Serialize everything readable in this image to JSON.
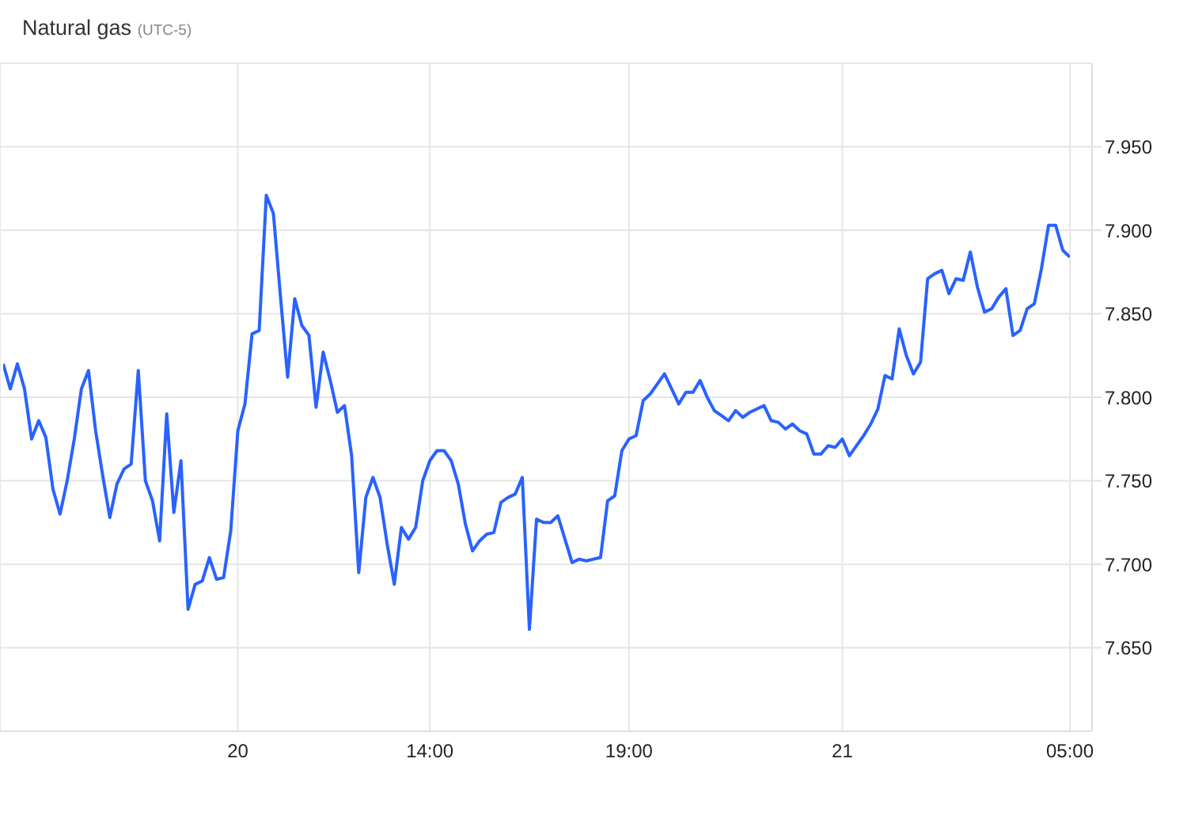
{
  "chart_data": {
    "type": "line",
    "title": "Natural gas",
    "subtitle": "(UTC-5)",
    "categories": [
      null,
      null,
      null,
      null,
      null,
      null,
      null,
      null,
      null,
      null,
      null,
      null,
      null,
      null,
      null,
      null,
      null,
      null,
      null,
      null,
      null,
      null,
      null,
      null,
      null,
      null,
      null,
      null,
      null,
      null,
      null,
      null,
      null,
      "20",
      null,
      null,
      null,
      null,
      null,
      null,
      null,
      null,
      null,
      null,
      null,
      null,
      null,
      null,
      null,
      null,
      null,
      null,
      null,
      null,
      null,
      null,
      null,
      null,
      null,
      null,
      "14:00",
      null,
      null,
      null,
      null,
      null,
      null,
      null,
      null,
      null,
      null,
      null,
      null,
      null,
      null,
      null,
      null,
      null,
      null,
      null,
      null,
      null,
      null,
      null,
      null,
      null,
      null,
      null,
      "19:00",
      null,
      null,
      null,
      null,
      null,
      null,
      null,
      null,
      null,
      null,
      null,
      null,
      null,
      null,
      null,
      null,
      null,
      null,
      null,
      null,
      null,
      null,
      null,
      null,
      null,
      null,
      null,
      null,
      null,
      "21",
      null,
      null,
      null,
      null,
      null,
      null,
      null,
      null,
      null,
      null,
      null,
      null,
      null,
      null,
      null,
      null,
      null,
      null,
      null,
      null,
      null,
      null,
      null,
      null,
      null,
      null,
      null,
      null,
      null,
      null,
      null,
      "05:00"
    ],
    "values": [
      7.82,
      7.805,
      7.82,
      7.805,
      7.775,
      7.786,
      7.776,
      7.745,
      7.73,
      7.75,
      7.775,
      7.805,
      7.816,
      7.78,
      7.753,
      7.728,
      7.748,
      7.757,
      7.76,
      7.816,
      7.75,
      7.738,
      7.714,
      7.79,
      7.731,
      7.762,
      7.673,
      7.688,
      7.69,
      7.704,
      7.691,
      7.692,
      7.72,
      7.78,
      7.796,
      7.838,
      7.84,
      7.921,
      7.91,
      7.86,
      7.812,
      7.859,
      7.843,
      7.837,
      7.794,
      7.827,
      7.81,
      7.791,
      7.795,
      7.765,
      7.695,
      7.74,
      7.752,
      7.74,
      7.712,
      7.688,
      7.722,
      7.715,
      7.722,
      7.75,
      7.762,
      7.768,
      7.768,
      7.762,
      7.748,
      7.724,
      7.708,
      7.714,
      7.718,
      7.719,
      7.737,
      7.74,
      7.742,
      7.752,
      7.661,
      7.727,
      7.725,
      7.725,
      7.729,
      7.715,
      7.701,
      7.703,
      7.702,
      7.703,
      7.704,
      7.738,
      7.741,
      7.768,
      7.775,
      7.777,
      7.798,
      7.802,
      7.808,
      7.814,
      7.805,
      7.796,
      7.803,
      7.803,
      7.81,
      7.8,
      7.792,
      7.789,
      7.786,
      7.792,
      7.788,
      7.791,
      7.793,
      7.795,
      7.786,
      7.785,
      7.781,
      7.784,
      7.78,
      7.778,
      7.766,
      7.766,
      7.771,
      7.77,
      7.775,
      7.765,
      7.771,
      7.777,
      7.784,
      7.793,
      7.813,
      7.811,
      7.841,
      7.825,
      7.814,
      7.821,
      7.871,
      7.874,
      7.876,
      7.862,
      7.871,
      7.87,
      7.887,
      7.866,
      7.851,
      7.853,
      7.86,
      7.865,
      7.837,
      7.84,
      7.853,
      7.856,
      7.877,
      7.903,
      7.903,
      7.888,
      7.884
    ],
    "color": "#2962ff",
    "ylim": [
      7.6,
      8.0
    ],
    "yticks": [
      {
        "value": 7.65,
        "label": "7.650"
      },
      {
        "value": 7.7,
        "label": "7.700"
      },
      {
        "value": 7.75,
        "label": "7.750"
      },
      {
        "value": 7.8,
        "label": "7.800"
      },
      {
        "value": 7.85,
        "label": "7.850"
      },
      {
        "value": 7.9,
        "label": "7.900"
      },
      {
        "value": 7.95,
        "label": "7.950"
      }
    ],
    "grid": true
  }
}
